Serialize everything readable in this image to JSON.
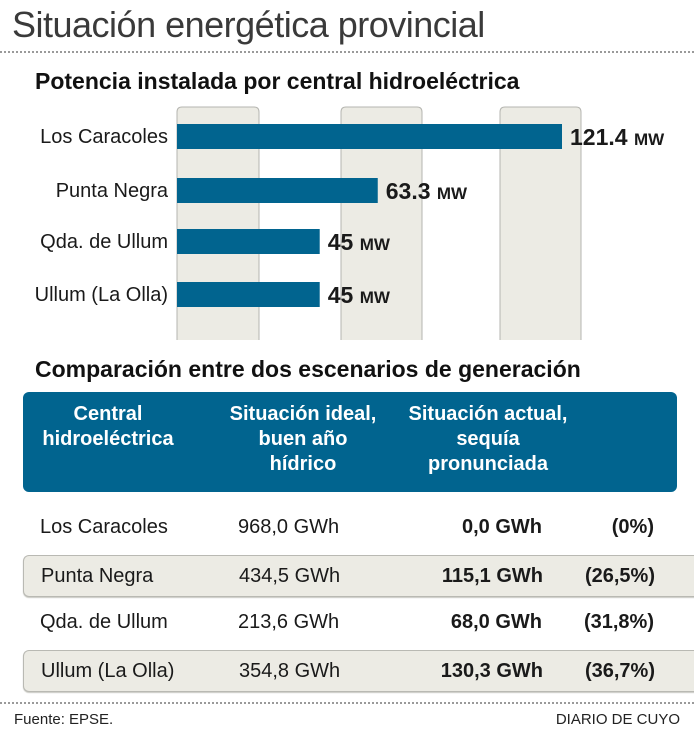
{
  "header": {
    "title": "Situación energética provincial"
  },
  "section1": {
    "subtitle": "Potencia instalada por central hidroeléctrica"
  },
  "chart_data": {
    "type": "bar",
    "orientation": "horizontal",
    "title": "Potencia instalada por central hidroeléctrica",
    "categories": [
      "Los Caracoles",
      "Punta Negra",
      "Qda. de Ullum",
      "Ullum (La Olla)"
    ],
    "values": [
      121.4,
      63.3,
      45,
      45
    ],
    "value_labels": [
      "121.4",
      "63.3",
      "45",
      "45"
    ],
    "unit": "MW",
    "xlabel": "",
    "ylabel": "",
    "xlim": [
      0,
      121.4
    ],
    "grid": false,
    "bar_color": "#01648f",
    "background_band_color": "#ecebe4"
  },
  "section2": {
    "subtitle": "Comparación entre dos escenarios de generación",
    "columns": [
      [
        "Central",
        "hidroeléctrica"
      ],
      [
        "Situación ideal,",
        "buen año",
        "hídrico"
      ],
      [
        "Situación actual,",
        "sequía",
        "pronunciada"
      ]
    ],
    "rows": [
      {
        "central": "Los Caracoles",
        "ideal": "968,0 GWh",
        "actual": "0,0 GWh",
        "pct": "(0%)"
      },
      {
        "central": "Punta Negra",
        "ideal": "434,5 GWh",
        "actual": "115,1 GWh",
        "pct": "(26,5%)"
      },
      {
        "central": "Qda. de Ullum",
        "ideal": "213,6 GWh",
        "actual": "68,0 GWh",
        "pct": "(31,8%)"
      },
      {
        "central": "Ullum (La Olla)",
        "ideal": "354,8 GWh",
        "actual": "130,3 GWh",
        "pct": "(36,7%)"
      }
    ]
  },
  "footer": {
    "source": "Fuente: EPSE.",
    "credit": "DIARIO DE CUYO"
  },
  "colors": {
    "accent": "#01648f",
    "band": "#ecebe4"
  }
}
